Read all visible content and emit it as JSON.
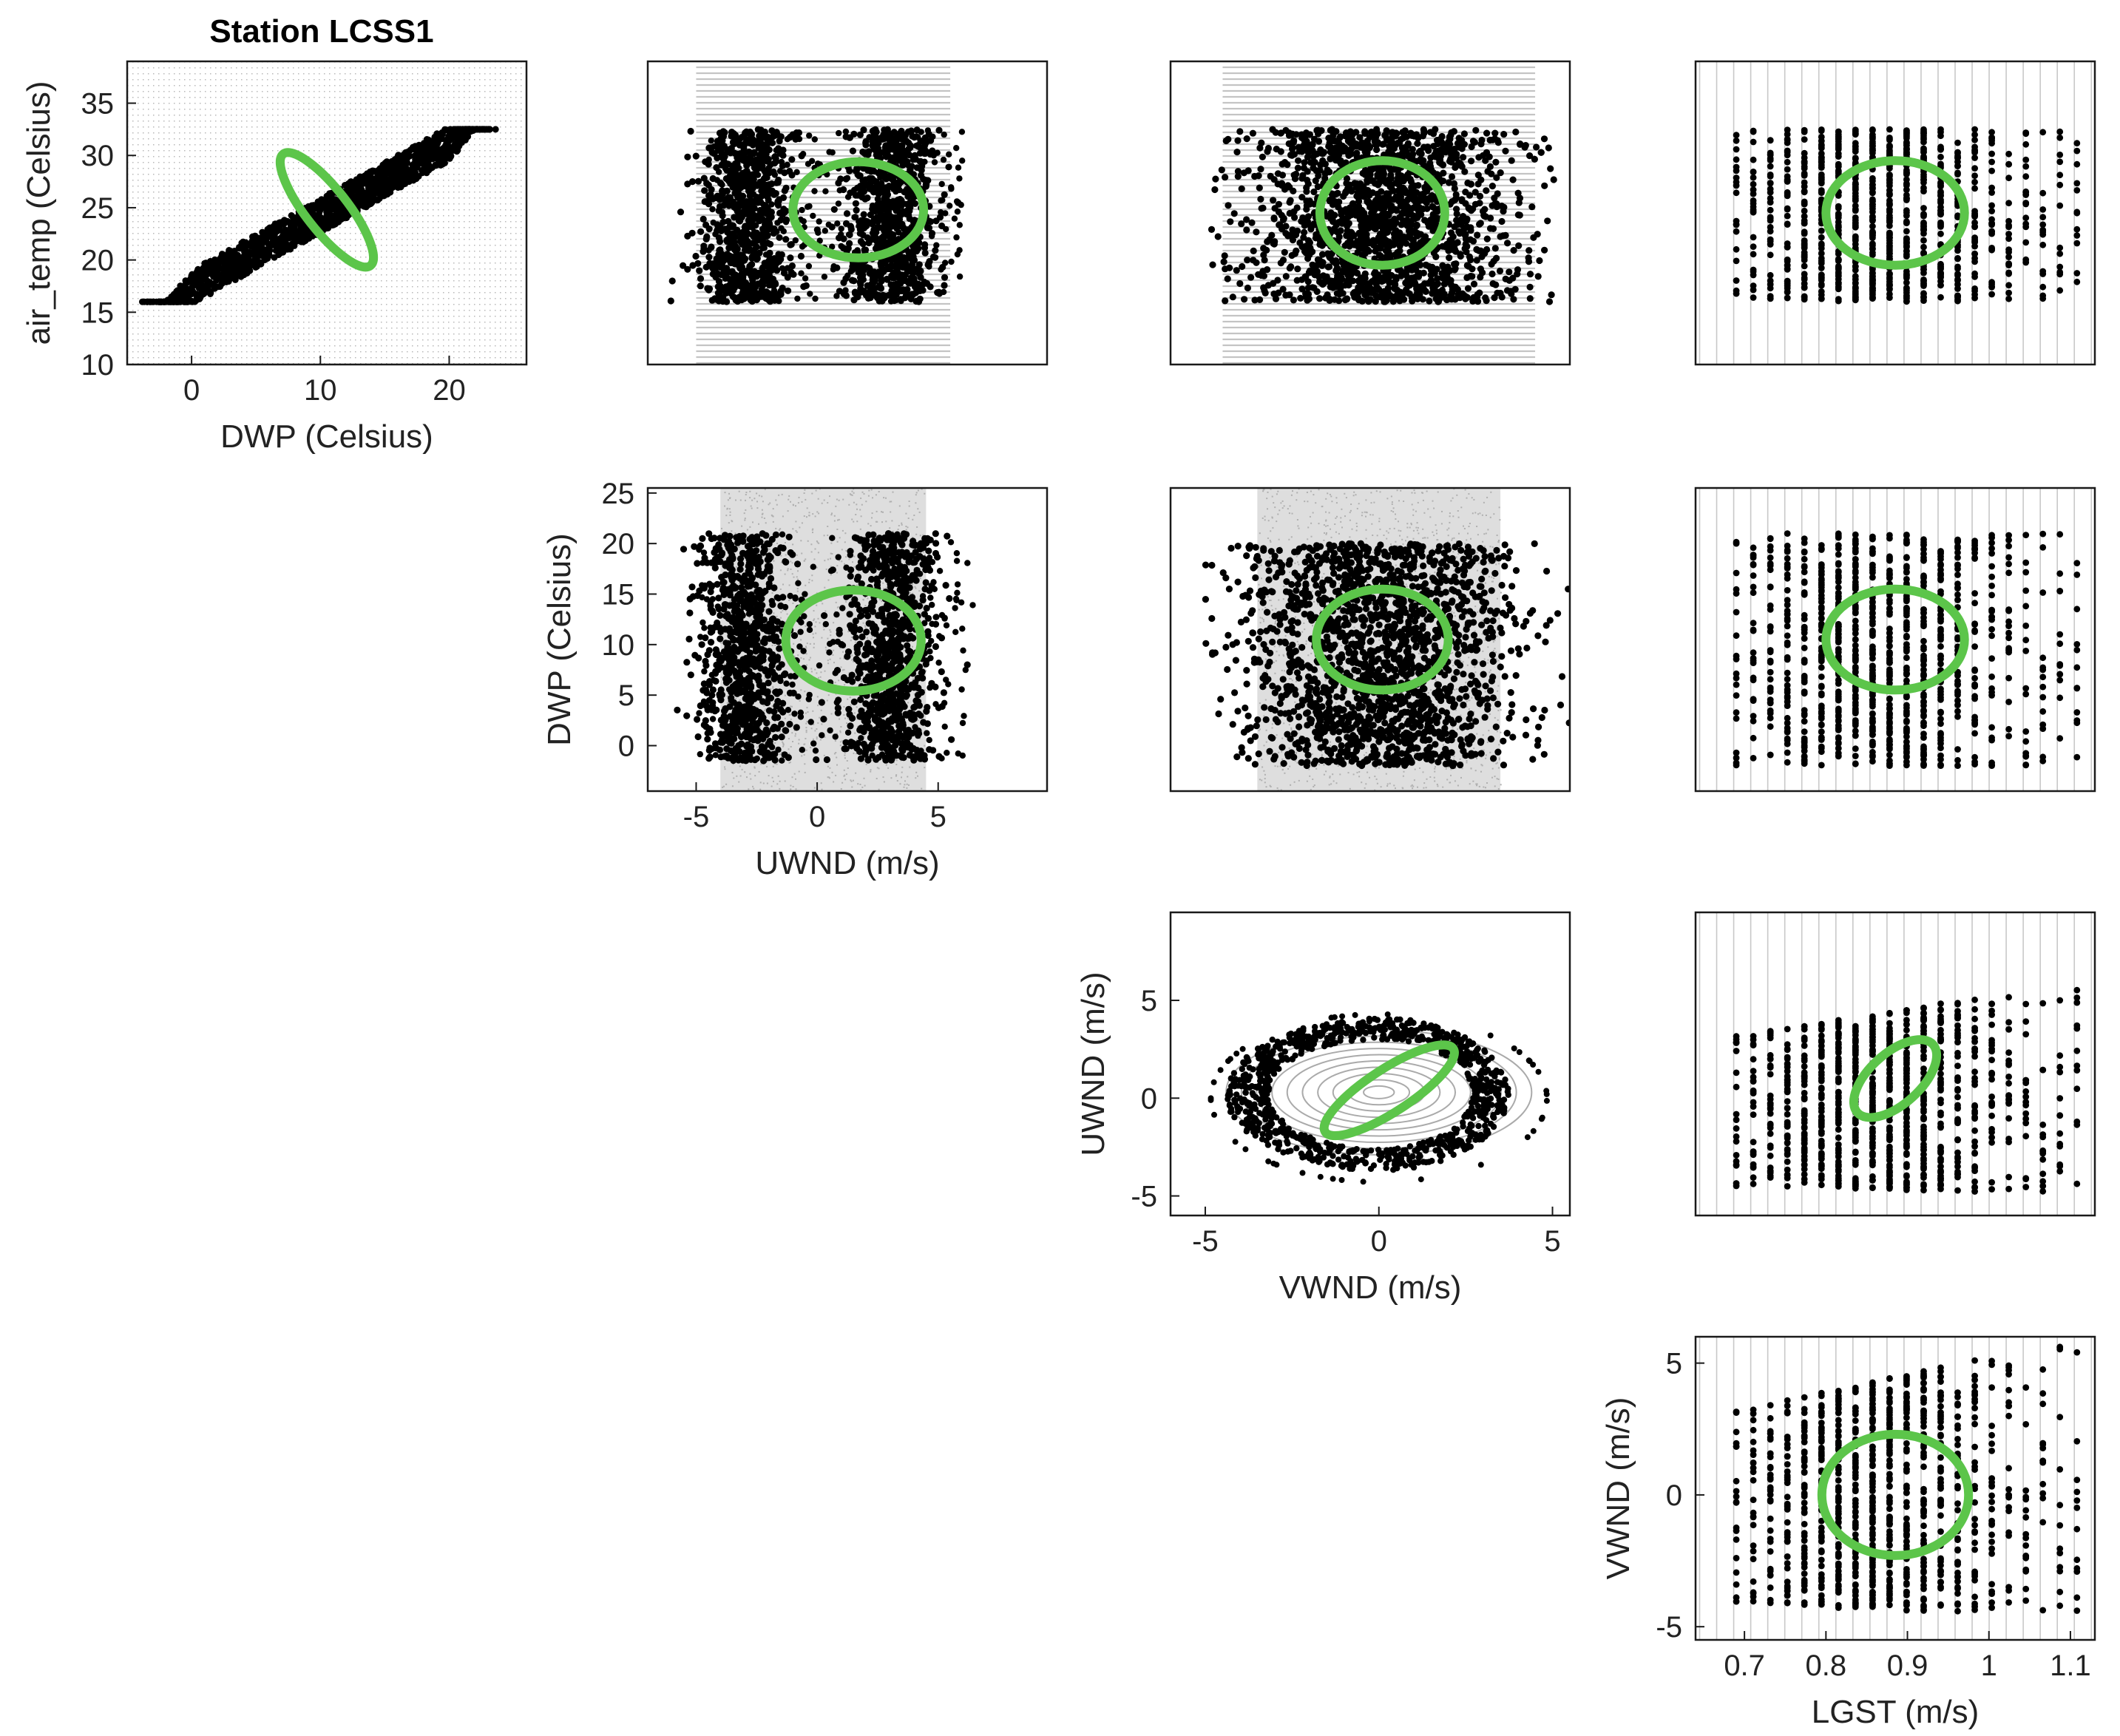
{
  "figure": {
    "title": "Station LCSS1"
  },
  "chart_data": [
    {
      "id": "air_temp_vs_DWP",
      "type": "scatter",
      "title": "Station LCSS1",
      "xlabel": "DWP (Celsius)",
      "ylabel": "air_temp (Celsius)",
      "xlim": [
        -5,
        26
      ],
      "ylim": [
        10,
        39
      ],
      "xticks": [
        0,
        10,
        20
      ],
      "yticks": [
        10,
        15,
        20,
        25,
        30,
        35
      ],
      "grid": false,
      "background_pattern": "grid",
      "background_range": {
        "x": [
          -5,
          26
        ],
        "y": [
          10,
          39
        ]
      },
      "observed_region": {
        "shape": "parallelogram",
        "x": [
          -2,
          22
        ],
        "y": [
          16,
          32.5
        ]
      },
      "ellipse": {
        "cx": 10.5,
        "cy": 24.8,
        "rx": 5.5,
        "ry": 2.0,
        "angle_deg": 52
      }
    },
    {
      "id": "air_temp_vs_UWND",
      "type": "scatter",
      "title": "",
      "xlabel": "",
      "ylabel": "",
      "xlim": [
        -7,
        9.5
      ],
      "ylim": [
        10,
        39
      ],
      "xticks": [],
      "yticks": [],
      "grid": false,
      "background_pattern": "rows",
      "background_range": {
        "x": [
          -5,
          5.5
        ],
        "y": [
          10,
          39
        ]
      },
      "observed_region": {
        "shape": "bands",
        "x": [
          -4.5,
          6
        ],
        "y": [
          16,
          32.5
        ],
        "x_centers": [
          -3,
          3
        ]
      },
      "ellipse": {
        "cx": 1.7,
        "cy": 24.8,
        "rx": 2.7,
        "ry": 4.6,
        "angle_deg": 0
      }
    },
    {
      "id": "air_temp_vs_VWND",
      "type": "scatter",
      "title": "",
      "xlabel": "",
      "ylabel": "",
      "xlim": [
        -6,
        5.5
      ],
      "ylim": [
        10,
        39
      ],
      "xticks": [],
      "yticks": [],
      "grid": false,
      "background_pattern": "rows",
      "background_range": {
        "x": [
          -4.5,
          4.5
        ],
        "y": [
          10,
          39
        ]
      },
      "observed_region": {
        "shape": "cloud",
        "x": [
          -5,
          5.5
        ],
        "y": [
          16,
          32.5
        ]
      },
      "ellipse": {
        "cx": 0.1,
        "cy": 24.5,
        "rx": 1.8,
        "ry": 5.0,
        "angle_deg": 0
      }
    },
    {
      "id": "air_temp_vs_LGST",
      "type": "scatter",
      "title": "",
      "xlabel": "",
      "ylabel": "",
      "xlim": [
        0.64,
        1.13
      ],
      "ylim": [
        10,
        39
      ],
      "xticks": [],
      "yticks": [],
      "grid": false,
      "background_pattern": "columns",
      "background_range": {
        "x": [
          0.64,
          1.13
        ],
        "y": [
          10,
          39
        ]
      },
      "observed_region": {
        "shape": "columns",
        "x": [
          0.69,
          1.12
        ],
        "y": [
          16,
          32.5
        ]
      },
      "ellipse": {
        "cx": 0.885,
        "cy": 24.5,
        "rx": 0.085,
        "ry": 5.0,
        "angle_deg": 0
      }
    },
    {
      "id": "DWP_vs_UWND",
      "type": "scatter",
      "title": "",
      "xlabel": "UWND (m/s)",
      "ylabel": "DWP (Celsius)",
      "xlim": [
        -7,
        9.5
      ],
      "ylim": [
        -4.5,
        25.5
      ],
      "xticks": [
        -5,
        0,
        5
      ],
      "yticks": [
        0,
        5,
        10,
        15,
        20,
        25
      ],
      "grid": false,
      "background_pattern": "fill",
      "background_range": {
        "x": [
          -4,
          4.5
        ],
        "y": [
          -4.5,
          25.5
        ]
      },
      "observed_region": {
        "shape": "bands",
        "x": [
          -5,
          6.5
        ],
        "y": [
          -1.5,
          21
        ],
        "x_centers": [
          -3,
          3
        ]
      },
      "ellipse": {
        "cx": 1.5,
        "cy": 10.4,
        "rx": 2.8,
        "ry": 5.0,
        "angle_deg": 0
      }
    },
    {
      "id": "DWP_vs_VWND",
      "type": "scatter",
      "title": "",
      "xlabel": "",
      "ylabel": "",
      "xlim": [
        -6,
        5.5
      ],
      "ylim": [
        -4.5,
        25.5
      ],
      "xticks": [],
      "yticks": [],
      "grid": false,
      "background_pattern": "fill",
      "background_range": {
        "x": [
          -3.5,
          3.5
        ],
        "y": [
          -4.5,
          25.5
        ]
      },
      "observed_region": {
        "shape": "cloud",
        "x": [
          -5,
          5.5
        ],
        "y": [
          -2,
          20
        ]
      },
      "ellipse": {
        "cx": 0.1,
        "cy": 10.5,
        "rx": 1.9,
        "ry": 5.0,
        "angle_deg": 0
      }
    },
    {
      "id": "DWP_vs_LGST",
      "type": "scatter",
      "title": "",
      "xlabel": "",
      "ylabel": "",
      "xlim": [
        0.64,
        1.13
      ],
      "ylim": [
        -4.5,
        25.5
      ],
      "xticks": [],
      "yticks": [],
      "grid": false,
      "background_pattern": "columns",
      "background_range": {
        "x": [
          0.64,
          1.13
        ],
        "y": [
          -4.5,
          25.5
        ]
      },
      "observed_region": {
        "shape": "columns",
        "x": [
          0.69,
          1.12
        ],
        "y": [
          -2,
          21
        ]
      },
      "ellipse": {
        "cx": 0.885,
        "cy": 10.5,
        "rx": 0.085,
        "ry": 5.0,
        "angle_deg": 0
      }
    },
    {
      "id": "UWND_vs_VWND",
      "type": "scatter",
      "title": "",
      "xlabel": "VWND (m/s)",
      "ylabel": "UWND (m/s)",
      "xlim": [
        -6,
        5.5
      ],
      "ylim": [
        -6,
        9.5
      ],
      "xticks": [
        -5,
        0,
        5
      ],
      "yticks": [
        -5,
        0,
        5
      ],
      "grid": false,
      "background_pattern": "rings",
      "background_range": {
        "x": [
          -4.5,
          4.5
        ],
        "y": [
          -4.5,
          4.5
        ]
      },
      "observed_region": {
        "shape": "rings",
        "x": [
          -4.5,
          4.5
        ],
        "y": [
          -4.2,
          4.2
        ],
        "rx": 4.4,
        "ry": 3.9
      },
      "ellipse": {
        "cx": 0.3,
        "cy": 0.4,
        "rx": 2.2,
        "ry": 1.1,
        "angle_deg": -33
      }
    },
    {
      "id": "UWND_vs_LGST",
      "type": "scatter",
      "title": "",
      "xlabel": "",
      "ylabel": "",
      "xlim": [
        0.64,
        1.13
      ],
      "ylim": [
        -6,
        9.5
      ],
      "xticks": [],
      "yticks": [],
      "grid": false,
      "background_pattern": "columns",
      "background_range": {
        "x": [
          0.64,
          1.13
        ],
        "y": [
          -6,
          9.5
        ]
      },
      "observed_region": {
        "shape": "fan",
        "x": [
          0.69,
          1.12
        ],
        "y": [
          -5,
          5.8
        ]
      },
      "ellipse": {
        "cx": 0.885,
        "cy": 1.0,
        "rx": 2.6,
        "ry": 1.3,
        "angle_deg": -42
      }
    },
    {
      "id": "VWND_vs_LGST",
      "type": "scatter",
      "title": "",
      "xlabel": "LGST (m/s)",
      "ylabel": "VWND (m/s)",
      "xlim": [
        0.64,
        1.13
      ],
      "ylim": [
        -5.5,
        6
      ],
      "xticks": [
        0.7,
        0.8,
        0.9,
        1,
        1.1
      ],
      "yticks": [
        -5,
        0,
        5
      ],
      "grid": false,
      "background_pattern": "columns",
      "background_range": {
        "x": [
          0.64,
          1.13
        ],
        "y": [
          -5.5,
          6
        ]
      },
      "observed_region": {
        "shape": "fan",
        "x": [
          0.69,
          1.12
        ],
        "y": [
          -4.7,
          5.8
        ]
      },
      "ellipse": {
        "cx": 0.885,
        "cy": 0.0,
        "rx": 0.09,
        "ry": 2.3,
        "angle_deg": 0
      }
    }
  ]
}
